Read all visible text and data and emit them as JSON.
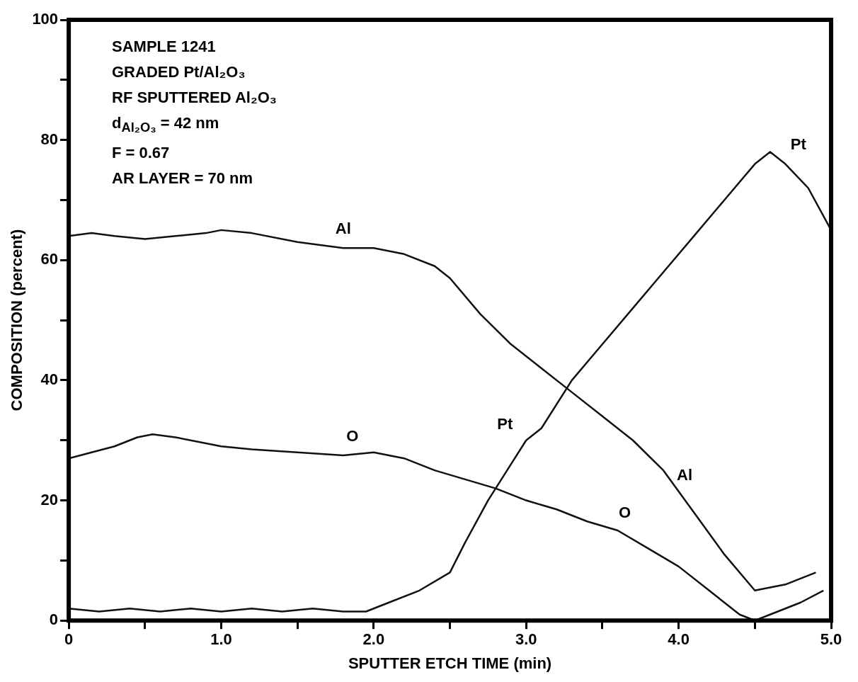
{
  "chart_data": {
    "type": "line",
    "xlabel": "SPUTTER ETCH TIME (min)",
    "ylabel": "COMPOSITION (percent)",
    "annotations": [
      "SAMPLE 1241",
      "GRADED Pt/Al₂O₃",
      "RF SPUTTERED Al₂O₃",
      "d$_{Al₂O₃}$ = 42 nm",
      "F = 0.67",
      "AR LAYER = 70 nm"
    ],
    "xlim": [
      0,
      5
    ],
    "xticks": [
      0,
      {
        "value": 0.5,
        "label": null
      },
      {
        "value": 1,
        "label": "1.0"
      },
      {
        "value": 1.5,
        "label": null
      },
      {
        "value": 2,
        "label": "2.0"
      },
      {
        "value": 2.5,
        "label": null
      },
      {
        "value": 3,
        "label": "3.0"
      },
      {
        "value": 3.5,
        "label": null
      },
      {
        "value": 4,
        "label": "4.0"
      },
      {
        "value": 4.5,
        "label": null
      },
      {
        "value": 5,
        "label": "5.0"
      }
    ],
    "ylim": [
      0,
      100
    ],
    "yticks": [
      0,
      {
        "value": 10,
        "label": null
      },
      20,
      {
        "value": 30,
        "label": null
      },
      40,
      {
        "value": 50,
        "label": null
      },
      60,
      {
        "value": 70,
        "label": null
      },
      80,
      {
        "value": 90,
        "label": null
      },
      100
    ],
    "marker": "none",
    "line_style": "solid",
    "legend": false,
    "grid": false,
    "series": [
      {
        "name": "Al",
        "color": "#111111",
        "x": [
          0,
          0.15,
          0.3,
          0.5,
          0.7,
          0.9,
          1.0,
          1.2,
          1.5,
          1.8,
          2.0,
          2.2,
          2.4,
          2.5,
          2.7,
          2.9,
          3.1,
          3.3,
          3.5,
          3.7,
          3.9,
          4.1,
          4.3,
          4.5,
          4.7,
          4.9
        ],
        "values": [
          64,
          64.5,
          64,
          63.5,
          64,
          64.5,
          65,
          64.5,
          63,
          62,
          62,
          61,
          59,
          57,
          51,
          46,
          42,
          38,
          34,
          30,
          25,
          18,
          11,
          5,
          6,
          8
        ]
      },
      {
        "name": "O",
        "color": "#111111",
        "x": [
          0,
          0.15,
          0.3,
          0.45,
          0.55,
          0.7,
          0.9,
          1.0,
          1.2,
          1.5,
          1.8,
          2.0,
          2.2,
          2.4,
          2.6,
          2.8,
          3.0,
          3.2,
          3.4,
          3.6,
          3.8,
          4.0,
          4.2,
          4.4,
          4.5,
          4.6,
          4.8,
          4.95
        ],
        "values": [
          27,
          28,
          29,
          30.5,
          31,
          30.5,
          29.5,
          29,
          28.5,
          28,
          27.5,
          28,
          27,
          25,
          23.5,
          22,
          20,
          18.5,
          16.5,
          15,
          12,
          9,
          5,
          1,
          0,
          1,
          3,
          5
        ]
      },
      {
        "name": "Pt",
        "color": "#111111",
        "x": [
          0,
          0.2,
          0.4,
          0.6,
          0.8,
          1.0,
          1.2,
          1.4,
          1.6,
          1.8,
          1.95,
          2.1,
          2.3,
          2.5,
          2.6,
          2.75,
          2.9,
          3.0,
          3.1,
          3.3,
          3.5,
          3.7,
          3.9,
          4.1,
          4.3,
          4.5,
          4.6,
          4.7,
          4.85,
          5.0
        ],
        "values": [
          2,
          1.5,
          2,
          1.5,
          2,
          1.5,
          2,
          1.5,
          2,
          1.5,
          1.5,
          3,
          5,
          8,
          13,
          20,
          26,
          30,
          32,
          40,
          46,
          52,
          58,
          64,
          70,
          76,
          78,
          76,
          72,
          65
        ]
      }
    ]
  }
}
